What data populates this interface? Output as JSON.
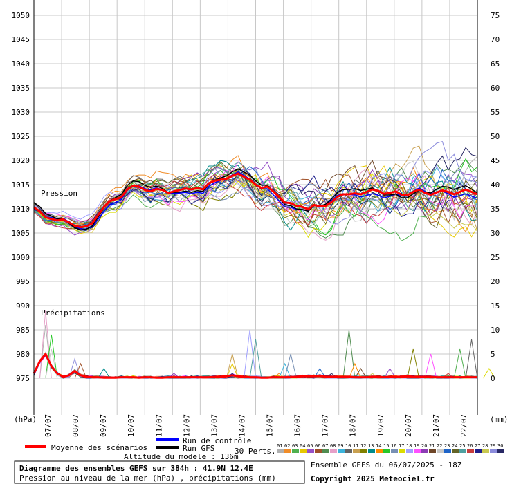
{
  "chart_data": {
    "type": "line",
    "pressure_label": "Pression",
    "precip_label": "Précipitations",
    "left_unit": "(hPa)",
    "right_unit": "(mm)",
    "left_ticks": [
      "1050",
      "1045",
      "1040",
      "1035",
      "1030",
      "1025",
      "1020",
      "1015",
      "1010",
      "1005",
      "1000",
      "995",
      "990",
      "985",
      "980",
      "975"
    ],
    "right_ticks": [
      "75",
      "70",
      "65",
      "60",
      "55",
      "50",
      "45",
      "40",
      "35",
      "30",
      "25",
      "20",
      "15",
      "10",
      "5",
      "0"
    ],
    "date_ticks": [
      "07/07",
      "08/07",
      "09/07",
      "10/07",
      "11/07",
      "12/07",
      "13/07",
      "14/07",
      "15/07",
      "16/07",
      "17/07",
      "18/07",
      "19/07",
      "20/07",
      "21/07",
      "22/07"
    ],
    "ylim_pressure": [
      975,
      1050
    ],
    "ylim_precip_mm": [
      0,
      75
    ],
    "grid": true,
    "mean_pressure_hpa": [
      1010.3,
      1009.5,
      1008.2,
      1007.9,
      1007.6,
      1007.8,
      1007.2,
      1006.5,
      1006.2,
      1006.4,
      1007.0,
      1008.7,
      1010.4,
      1011.6,
      1012.0,
      1012.4,
      1014.0,
      1014.8,
      1014.6,
      1013.9,
      1013.6,
      1014.1,
      1013.9,
      1013.3,
      1013.6,
      1013.9,
      1014.2,
      1014.0,
      1014.3,
      1014.0,
      1015.3,
      1015.8,
      1016.0,
      1016.2,
      1016.8,
      1017.3,
      1016.6,
      1016.0,
      1015.0,
      1014.3,
      1014.6,
      1013.6,
      1012.5,
      1011.3,
      1011.2,
      1010.6,
      1010.4,
      1009.9,
      1010.8,
      1010.5,
      1010.6,
      1011.4,
      1012.5,
      1013.0,
      1013.0,
      1013.2,
      1013.0,
      1013.5,
      1014.0,
      1013.7,
      1013.1,
      1013.3,
      1013.6,
      1012.9,
      1012.8,
      1013.5,
      1014.0,
      1013.3,
      1012.9,
      1013.4,
      1013.8,
      1013.5,
      1013.0,
      1013.5,
      1014.0,
      1013.5,
      1013.0
    ],
    "mean_precip_mm": [
      1.0,
      3.5,
      5.0,
      2.5,
      1.0,
      0.3,
      0.6,
      1.5,
      0.6,
      0.3,
      0.2,
      0.2,
      0.1,
      0.1,
      0.1,
      0.2,
      0.2,
      0.2,
      0.1,
      0.2,
      0.2,
      0.1,
      0.1,
      0.2,
      0.2,
      0.2,
      0.2,
      0.2,
      0.2,
      0.2,
      0.2,
      0.3,
      0.3,
      0.4,
      0.6,
      0.4,
      0.3,
      0.2,
      0.2,
      0.1,
      0.1,
      0.2,
      0.2,
      0.2,
      0.2,
      0.3,
      0.4,
      0.4,
      0.4,
      0.5,
      0.3,
      0.3,
      0.3,
      0.3,
      0.3,
      0.2,
      0.2,
      0.2,
      0.3,
      0.3,
      0.2,
      0.3,
      0.3,
      0.3,
      0.4,
      0.3,
      0.3,
      0.3,
      0.3,
      0.2,
      0.2,
      0.2,
      0.2,
      0.2,
      0.2,
      0.2,
      0.2
    ],
    "precip_spikes_mm": [
      [
        2,
        11
      ],
      [
        2,
        14
      ],
      [
        3,
        9
      ],
      [
        3,
        6
      ],
      [
        7,
        4
      ],
      [
        8,
        3
      ],
      [
        12,
        2
      ],
      [
        24,
        1
      ],
      [
        34,
        1
      ],
      [
        34,
        3
      ],
      [
        34,
        5
      ],
      [
        37,
        10
      ],
      [
        38,
        8
      ],
      [
        42,
        1
      ],
      [
        43,
        3
      ],
      [
        44,
        5
      ],
      [
        49,
        2
      ],
      [
        51,
        1
      ],
      [
        54,
        10
      ],
      [
        55,
        3
      ],
      [
        56,
        2
      ],
      [
        58,
        1
      ],
      [
        61,
        2
      ],
      [
        65,
        6
      ],
      [
        68,
        5
      ],
      [
        71,
        1
      ],
      [
        73,
        6
      ],
      [
        75,
        8
      ],
      [
        78,
        2
      ]
    ],
    "member_count": 30,
    "series_legend": [
      {
        "name": "Moyenne des scénarios",
        "color": "#ff0000"
      },
      {
        "name": "Run de contrôle",
        "color": "#0000ff"
      },
      {
        "name": "Run GFS",
        "color": "#000000"
      }
    ],
    "perts_label": "30 Perts.",
    "pert_numbers": [
      "01",
      "02",
      "03",
      "04",
      "05",
      "06",
      "07",
      "08",
      "09",
      "10",
      "11",
      "12",
      "13",
      "14",
      "15",
      "16",
      "17",
      "18",
      "19",
      "20",
      "21",
      "22",
      "23",
      "24",
      "25",
      "26",
      "27",
      "28",
      "29",
      "30"
    ],
    "pert_colors": [
      "#b0b0b0",
      "#f08c28",
      "#50b050",
      "#e6c800",
      "#9650c8",
      "#a05028",
      "#508c50",
      "#e6a0c8",
      "#3cb4dc",
      "#646464",
      "#c8a050",
      "#808000",
      "#008c8c",
      "#ff8c00",
      "#28c828",
      "#7890b4",
      "#dcdc00",
      "#a0a0ff",
      "#ff50ff",
      "#8c3cb4",
      "#6e4628",
      "#c8c8c8",
      "#1e64c8",
      "#646428",
      "#50a0a0",
      "#c83c3c",
      "#1e1e8c",
      "#c8c850",
      "#8c8cdc",
      "#282864"
    ],
    "altitude_text": "Altitude du modele : 136m",
    "title_main": "Diagramme des ensembles GEFS sur 384h : 41.9N 12.4E",
    "title_sub": "Pression au niveau de la mer (hPa) , précipitations (mm)",
    "run_info": "Ensemble GEFS du 06/07/2025 - 18Z",
    "copyright": "Copyright 2025 Meteociel.fr"
  }
}
